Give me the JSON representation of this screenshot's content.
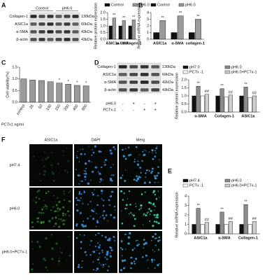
{
  "panel_labels": [
    "A",
    "B",
    "C",
    "D",
    "E",
    "F"
  ],
  "blot_a": {
    "groups": [
      "Control",
      "pH6.0"
    ],
    "rows": [
      {
        "name": "Collagen-1",
        "size": "130kDa"
      },
      {
        "name": "ASIC1a",
        "size": "60kDa"
      },
      {
        "name": "α-SMA",
        "size": "43kDa"
      },
      {
        "name": "β-actin",
        "size": "43kDa"
      }
    ]
  },
  "blot_d": {
    "rows": [
      {
        "name": "Collagen-1",
        "size": "130kDa"
      },
      {
        "name": "ASIC1a",
        "size": "60kDa"
      },
      {
        "name": "α-SMA",
        "size": "42kDa"
      },
      {
        "name": "β-actin",
        "size": "43kDa"
      }
    ],
    "conditions": [
      {
        "name": "pH6.0",
        "signs": [
          "-",
          "+",
          "-",
          "+"
        ]
      },
      {
        "name": "PCTx-1",
        "signs": [
          "-",
          "-",
          "+",
          "+"
        ]
      }
    ]
  },
  "microscopy": {
    "columns": [
      "ASIC1a",
      "DAPI",
      "Merg"
    ],
    "rows": [
      "pH7.4",
      "pH6.0",
      "pH6.0+PCTx-1"
    ]
  },
  "chart_data": [
    {
      "type": "bar",
      "ylabel": "Relative protein expression",
      "categories": [
        "ASIC1a",
        "α-SMA",
        "collagen-1"
      ],
      "series": [
        {
          "name": "Control",
          "color": "#111111",
          "values": [
            1.0,
            1.0,
            1.0
          ]
        },
        {
          "name": "pH6.0",
          "color": "#9a9a9a",
          "values": [
            1.6,
            1.4,
            1.45
          ],
          "annotations": [
            "**",
            "**",
            "**"
          ]
        }
      ],
      "ylim": [
        0,
        2
      ],
      "yticks": [
        {
          "value": 0,
          "label": "0.0"
        },
        0.5,
        {
          "value": 1,
          "label": "1.0"
        },
        1.5,
        {
          "value": 2,
          "label": "2.0"
        }
      ],
      "legend": "top"
    },
    {
      "type": "bar",
      "ylabel": "Relative mRNA expression",
      "categories": [
        "ASIC1a",
        "α-SMA",
        "collagen-1"
      ],
      "series": [
        {
          "name": "Control",
          "color": "#111111",
          "values": [
            1.0,
            1.0,
            1.0
          ]
        },
        {
          "name": "pH6.0",
          "color": "#9a9a9a",
          "values": [
            2.8,
            3.5,
            3.0
          ],
          "annotations": [
            "**",
            "**",
            "**"
          ]
        }
      ],
      "ylim": [
        0,
        4
      ],
      "yticks": [
        0,
        1,
        2,
        3,
        4
      ],
      "legend": "top"
    },
    {
      "type": "bar",
      "ylabel": "Cell viability(%)",
      "xlabel": "PCTx1 ng/ml",
      "categories": [
        "control",
        "25",
        "50",
        "100",
        "150",
        "200",
        "400",
        "800"
      ],
      "values": [
        1.0,
        0.95,
        0.93,
        0.88,
        0.82,
        0.77,
        0.72,
        0.7
      ],
      "color": "#9a9a9a",
      "annotations": [
        null,
        null,
        null,
        null,
        "*",
        "*",
        "*",
        "*"
      ],
      "ylim": [
        0,
        1.5
      ],
      "yticks": [
        {
          "value": 0,
          "label": "0.0"
        },
        0.5,
        {
          "value": 1,
          "label": "1.0"
        },
        1.5
      ]
    },
    {
      "type": "bar",
      "ylabel": "Relative protein expression",
      "categories": [
        "α-SMA",
        "Collagen-1",
        "ASIC1a"
      ],
      "series": [
        {
          "name": "pH7.0",
          "color": "#111111",
          "values": [
            1.0,
            1.0,
            1.0
          ]
        },
        {
          "name": "pH6.0",
          "color": "#8c8c8c",
          "values": [
            1.6,
            1.45,
            1.55
          ],
          "annotations": [
            "**",
            "**",
            "**"
          ]
        },
        {
          "name": "PCTx -1",
          "color": "#ffffff",
          "values": [
            1.0,
            0.95,
            0.9
          ]
        },
        {
          "name": "pH6.0+PCTx-1",
          "color": "#cfcfcf",
          "values": [
            1.1,
            1.05,
            1.0
          ],
          "annotations": [
            "##",
            "##",
            "##"
          ]
        }
      ],
      "ylim": [
        0,
        2
      ],
      "yticks": [
        {
          "value": 0,
          "label": "0.0"
        },
        0.5,
        {
          "value": 1,
          "label": "1.0"
        },
        1.5,
        {
          "value": 2,
          "label": "2.0"
        }
      ],
      "legend": "top"
    },
    {
      "type": "bar",
      "ylabel": "Relative mRNA expression",
      "categories": [
        "ASIC1a",
        "α-SMA",
        "Collagen-1"
      ],
      "series": [
        {
          "name": "pH7.4",
          "color": "#111111",
          "values": [
            1.0,
            1.0,
            1.0
          ]
        },
        {
          "name": "pH6.0",
          "color": "#8c8c8c",
          "values": [
            2.7,
            2.3,
            3.1
          ],
          "annotations": [
            "**",
            "**",
            "**"
          ]
        },
        {
          "name": "PCTx -1",
          "color": "#ffffff",
          "values": [
            1.0,
            1.0,
            1.0
          ]
        },
        {
          "name": "pH6.0+PCTx-1",
          "color": "#cfcfcf",
          "values": [
            1.2,
            1.3,
            1.3
          ],
          "annotations": [
            "##",
            "##",
            "##"
          ]
        }
      ],
      "ylim": [
        0,
        4
      ],
      "yticks": [
        0,
        1,
        2,
        3,
        4
      ],
      "legend": "top"
    }
  ]
}
